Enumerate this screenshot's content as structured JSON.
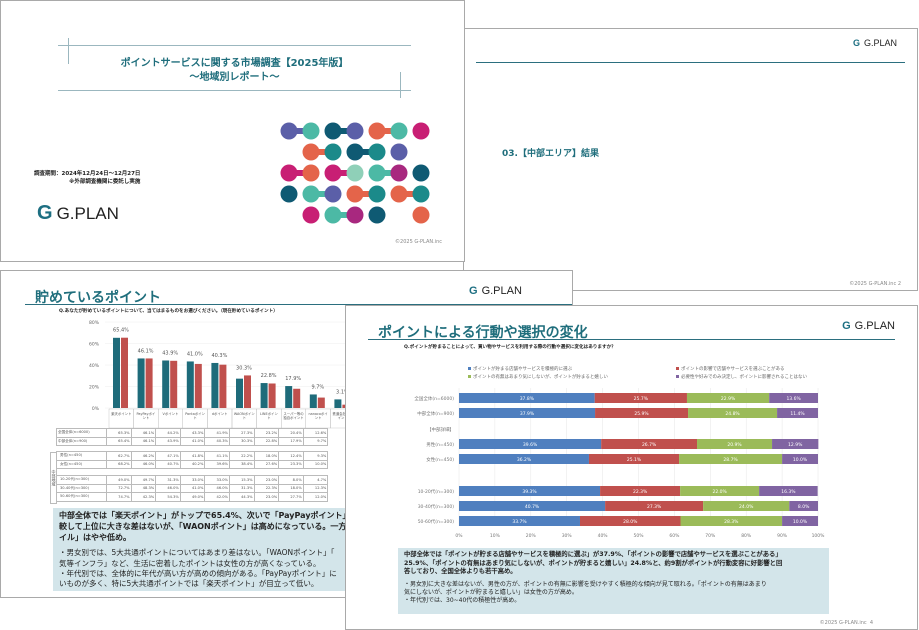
{
  "colors": {
    "brand": "#1f6e7c",
    "blue": "#4f7fbf",
    "red": "#c0504d",
    "green": "#9bbb59",
    "purple": "#8064a2",
    "teal_bar": "#1e6b7a",
    "box_bg": "#d3e5ea"
  },
  "logo": {
    "text": "G.PLAN",
    "icon": "g-plan-logo-icon"
  },
  "slide1": {
    "title": "ポイントサービスに関する市場調査【2025年版】",
    "subtitle": "～地域別レポート～",
    "period": "調査期間：2024年12月24日～12月27日",
    "note": "※外部調査機関に委託し実施",
    "copyright": "©2025 G-PLAN.inc"
  },
  "slide2": {
    "section_title": "03.【中部エリア】結果",
    "copyright": "©2025 G-PLAN.inc",
    "page": "2"
  },
  "slide3": {
    "title": "貯めているポイント",
    "question": "Q.あなたが貯めているポイントについて、当てはまるものをお選びください。（現在貯めているポイント）",
    "chart_data": {
      "type": "bar",
      "categories": [
        "楽天ポイント",
        "PayPayポイント",
        "Vポイント",
        "Pontaポイント",
        "dポイント",
        "WAONポイント",
        "LINEポイント",
        "スーパー等の独自ポイント",
        "nanacoポイント",
        "鉄道会社のポイント"
      ],
      "yticks": [
        "0%",
        "20%",
        "40%",
        "60%",
        "80%"
      ],
      "ylim": [
        0,
        80
      ],
      "series": [
        {
          "name": "全国全体(n=6000)",
          "values": [
            65.3,
            46.1,
            44.2,
            43.3,
            41.9,
            27.3,
            23.2,
            20.4,
            12.6,
            8.0
          ]
        },
        {
          "name": "中部全体(n=900)",
          "values": [
            65.4,
            46.1,
            43.9,
            41.0,
            40.3,
            30.3,
            22.8,
            17.9,
            9.7,
            3.1
          ]
        }
      ],
      "data_labels": [
        "65.4%",
        "46.1%",
        "43.9%",
        "41.0%",
        "40.3%",
        "30.3%",
        "22.8%",
        "17.9%",
        "9.7%",
        "3.1%"
      ]
    },
    "table": {
      "group_label": "中部地域",
      "rows": [
        {
          "label": "全国全体(n=6000)",
          "values": [
            "65.3%",
            "46.1%",
            "44.2%",
            "43.3%",
            "41.9%",
            "27.3%",
            "23.2%",
            "20.4%",
            "12.6%"
          ]
        },
        {
          "label": "中部全体(n=900)",
          "values": [
            "65.4%",
            "46.1%",
            "43.9%",
            "41.0%",
            "40.3%",
            "30.3%",
            "22.8%",
            "17.9%",
            "9.7%"
          ]
        },
        {
          "label": "男性(n=450)",
          "values": [
            "62.7%",
            "46.2%",
            "47.1%",
            "41.8%",
            "41.1%",
            "22.2%",
            "18.0%",
            "12.4%",
            "9.3%"
          ]
        },
        {
          "label": "女性(n=450)",
          "values": [
            "68.2%",
            "46.0%",
            "40.7%",
            "40.2%",
            "39.6%",
            "38.4%",
            "27.6%",
            "23.3%",
            "10.0%"
          ]
        },
        {
          "label": "10-20代(n=300)",
          "values": [
            "49.0%",
            "49.7%",
            "31.3%",
            "33.0%",
            "33.0%",
            "15.3%",
            "23.0%",
            "8.0%",
            "4.7%"
          ]
        },
        {
          "label": "30-40代(n=300)",
          "values": [
            "72.7%",
            "48.3%",
            "46.0%",
            "41.0%",
            "46.0%",
            "31.3%",
            "22.3%",
            "18.0%",
            "12.3%"
          ]
        },
        {
          "label": "50-60代(n=300)",
          "values": [
            "74.7%",
            "42.3%",
            "54.3%",
            "49.0%",
            "42.0%",
            "44.3%",
            "23.0%",
            "27.7%",
            "12.0%"
          ]
        }
      ]
    },
    "summary_lines": [
      "中部全体では「楽天ポイント」がトップで65.4%、次いで「PayPayポイント」46",
      "較して上位に大きな差はないが、「WAONポイント」は高めになっている。一方「",
      "イル」はやや低め。"
    ],
    "detail_lines": [
      "・男女別では、5大共通ポイントについてはあまり差はない。「WAONポイント」「",
      "気等インフラ」など、生活に密着したポイントは女性の方が高くなっている。",
      "・年代別では、全体的に年代が高い方が高めの傾向がある。「PayPayポイント」に",
      "いものが多く、特に5大共通ポイントでは「楽天ポイント」が目立って低い。"
    ]
  },
  "slide4": {
    "title": "ポイントによる行動や選択の変化",
    "question": "Q.ポイントが貯まることによって、買い物やサービスを利用する際の行動や選択に変化はありますか？",
    "chart_data": {
      "type": "bar",
      "orientation": "horizontal-stacked-100",
      "legend": [
        "ポイントが貯まる店舗やサービスを積極的に選ぶ",
        "ポイントの影響で店舗やサービスを選ぶことがある",
        "ポイントの有無はあまり気にしないが、ポイントが貯まると嬉しい",
        "必要性や好みでのみ決定し、ポイントに影響されることはない"
      ],
      "legend_position": "top",
      "xticks": [
        "0%",
        "10%",
        "20%",
        "30%",
        "40%",
        "50%",
        "60%",
        "70%",
        "80%",
        "90%",
        "100%"
      ],
      "rows": [
        {
          "label": "全国全体(n=6000)",
          "values": [
            37.8,
            25.7,
            22.9,
            13.6
          ],
          "labels": [
            "37.8%",
            "25.7%",
            "22.9%",
            "13.6%"
          ]
        },
        {
          "label": "中部全体(n=900)",
          "values": [
            37.9,
            25.9,
            24.8,
            11.4
          ],
          "labels": [
            "37.9%",
            "25.9%",
            "24.8%",
            "11.4%"
          ]
        },
        {
          "label": "【中部詳細】",
          "values": null
        },
        {
          "label": "男性(n=450)",
          "values": [
            39.6,
            26.7,
            20.9,
            12.9
          ],
          "labels": [
            "39.6%",
            "26.7%",
            "20.9%",
            "12.9%"
          ]
        },
        {
          "label": "女性(n=450)",
          "values": [
            36.2,
            25.1,
            28.7,
            10.0
          ],
          "labels": [
            "36.2%",
            "25.1%",
            "28.7%",
            "10.0%"
          ]
        },
        {
          "label": "",
          "values": null
        },
        {
          "label": "10-20代(n=300)",
          "values": [
            39.3,
            22.3,
            22.0,
            16.3
          ],
          "labels": [
            "39.3%",
            "22.3%",
            "22.0%",
            "16.3%"
          ]
        },
        {
          "label": "30-40代(n=300)",
          "values": [
            40.7,
            27.3,
            24.0,
            8.0
          ],
          "labels": [
            "40.7%",
            "27.3%",
            "24.0%",
            "8.0%"
          ]
        },
        {
          "label": "50-60代(n=300)",
          "values": [
            33.7,
            28.0,
            28.3,
            10.0
          ],
          "labels": [
            "33.7%",
            "28.0%",
            "28.3%",
            "10.0%"
          ]
        }
      ]
    },
    "summary_lines": [
      "中部全体では「ポイントが貯まる店舗やサービスを積極的に選ぶ」が37.9%、「ポイントの影響で店舗やサービスを選ぶことがある」",
      "25.9%、「ポイントの有無はあまり気にしないが、ポイントが貯まると嬉しい」24.8%と、約9割がポイントが行動変容に好影響と回",
      "答しており、全国全体よりも若干高め。"
    ],
    "detail_lines": [
      "・男女別に大きな差はないが、男性の方が、ポイントの有無に影響を受けやすく積極的な傾向が見て取れる。「ポイントの有無はあまり",
      "気にしないが、ポイントが貯まると嬉しい」は女性の方が高め。",
      "・年代別では、30~40代の積極性が高め。"
    ],
    "copyright": "©2025 G-PLAN.inc",
    "page": "4"
  }
}
